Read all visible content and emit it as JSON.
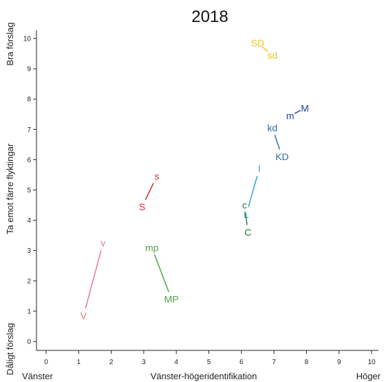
{
  "chart_data": {
    "type": "scatter",
    "title": "2018",
    "xlabel": "Vänster-högeridentifikation",
    "ylabel": "Ta emot färre flyktingar",
    "x_end_labels": {
      "left": "Vänster",
      "right": "Höger"
    },
    "y_end_labels": {
      "top": "Bra förslag",
      "bottom": "Dåligt förslag"
    },
    "xlim": [
      0,
      10
    ],
    "ylim": [
      0,
      10
    ],
    "xticks": [
      "0",
      "1",
      "2",
      "3",
      "4",
      "5",
      "6",
      "7",
      "8",
      "9",
      "10"
    ],
    "yticks": [
      "0",
      "1",
      "2",
      "3",
      "4",
      "5",
      "6",
      "7",
      "8",
      "9",
      "10"
    ],
    "grid": false,
    "pairs": [
      {
        "color": "#e8788a",
        "points": [
          {
            "label": "V",
            "x": 1.15,
            "y": 0.85
          },
          {
            "label": "v",
            "x": 1.75,
            "y": 3.25
          }
        ]
      },
      {
        "color": "#d9233b",
        "points": [
          {
            "label": "S",
            "x": 2.95,
            "y": 4.45
          },
          {
            "label": "s",
            "x": 3.4,
            "y": 5.45
          }
        ]
      },
      {
        "color": "#4ea34b",
        "points": [
          {
            "label": "mp",
            "x": 3.25,
            "y": 3.1
          },
          {
            "label": "MP",
            "x": 3.85,
            "y": 1.4
          }
        ]
      },
      {
        "color": "#f2c41c",
        "points": [
          {
            "label": "SD",
            "x": 6.5,
            "y": 9.85
          },
          {
            "label": "sd",
            "x": 6.95,
            "y": 9.45
          }
        ]
      },
      {
        "color": "#23439a",
        "points": [
          {
            "label": "m",
            "x": 7.5,
            "y": 7.45
          },
          {
            "label": "M",
            "x": 7.95,
            "y": 7.7
          }
        ]
      },
      {
        "color": "#2f6ea8",
        "points": [
          {
            "label": "kd",
            "x": 6.95,
            "y": 7.05
          },
          {
            "label": "KD",
            "x": 7.25,
            "y": 6.1
          }
        ]
      },
      {
        "color": "#2ea2d4",
        "points": [
          {
            "label": "l",
            "x": 6.55,
            "y": 5.7
          },
          {
            "label": "L",
            "x": 6.15,
            "y": 4.2
          }
        ]
      },
      {
        "color": "#267c33",
        "points": [
          {
            "label": "c",
            "x": 6.1,
            "y": 4.5
          },
          {
            "label": "C",
            "x": 6.2,
            "y": 3.6
          }
        ]
      }
    ]
  }
}
